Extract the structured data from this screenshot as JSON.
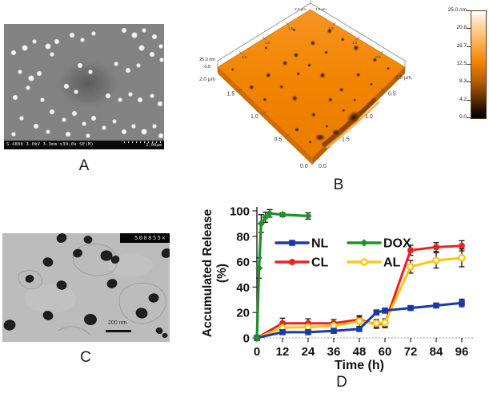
{
  "figure": {
    "panels": {
      "a": {
        "label": "A",
        "sem_info": "S-4800 3.0kV 3.3mm x30.0k SE(M)",
        "scale_text": "1.00µm"
      },
      "b": {
        "label": "B",
        "z_axis": {
          "max": "25.0 nm",
          "min": "0.0"
        },
        "front_left_axis": {
          "end": "2.0 µm",
          "ticks": [
            "1.5",
            "1.0",
            "0.5"
          ],
          "origin": "0.0"
        },
        "front_right_axis": {
          "end": "2.0 µm",
          "ticks": [
            "1.5",
            "1.0",
            "0.5"
          ],
          "origin": "0.0"
        },
        "back_left_ticks": [
          "1.5",
          "1.0",
          "0.5"
        ],
        "back_right_ticks": [
          "1.5",
          "1.0",
          "0.5"
        ],
        "apex_labels": [
          "2.0 µm",
          "2.0 µm"
        ]
      },
      "c": {
        "label": "C",
        "stamp": "500855×",
        "scale_text": "200 nm"
      },
      "d": {
        "label": "D"
      }
    },
    "colorbar": {
      "unit": "nm",
      "labels": [
        "25.0 nm",
        "20.8",
        "16.7",
        "12.5",
        "8.3",
        "4.2",
        "0.0"
      ]
    }
  },
  "chart_data": {
    "type": "line",
    "title": "",
    "xlabel": "Time (h)",
    "ylabel": "Accumulated Release (%)",
    "ylabel_lines": [
      "Accumulated Release",
      "(%)"
    ],
    "xlim": [
      0,
      96
    ],
    "ylim": [
      0,
      100
    ],
    "x_ticks": [
      0,
      12,
      24,
      36,
      48,
      60,
      72,
      84,
      96
    ],
    "y_ticks": [
      0,
      20,
      40,
      60,
      80,
      100
    ],
    "grid": false,
    "legend_position": "inside top, two columns",
    "legend_rows": [
      [
        "NL",
        "DOX"
      ],
      [
        "CL",
        "AL"
      ]
    ],
    "series": [
      {
        "name": "NL",
        "color": "#1a39a8",
        "marker": "square",
        "x": [
          0,
          12,
          24,
          36,
          48,
          56,
          60,
          72,
          84,
          96
        ],
        "y": [
          0,
          4.5,
          4.5,
          5.5,
          7,
          20,
          21.5,
          23.5,
          25.5,
          27.5
        ],
        "err": [
          0,
          1.5,
          1.5,
          1.5,
          1.5,
          2,
          2,
          1.5,
          1.5,
          3
        ]
      },
      {
        "name": "CL",
        "color": "#ee2022",
        "marker": "circle",
        "x": [
          0,
          12,
          24,
          36,
          48,
          56,
          60,
          72,
          84,
          96
        ],
        "y": [
          0,
          11.5,
          11.5,
          11.5,
          14.5,
          10.5,
          11.5,
          69,
          71.5,
          72.5
        ],
        "err": [
          0,
          4,
          3.5,
          3,
          3,
          3,
          3.5,
          4,
          3.5,
          4
        ]
      },
      {
        "name": "DOX",
        "color": "#1d9027",
        "marker": "diamond",
        "x": [
          0,
          1,
          2,
          4,
          6,
          12,
          24
        ],
        "y": [
          0,
          55,
          90,
          95,
          98,
          97,
          96
        ],
        "err": [
          0,
          8,
          7,
          4,
          3,
          1.5,
          2.5
        ]
      },
      {
        "name": "AL",
        "color": "#fdc515",
        "marker": "open-circle",
        "x": [
          0,
          12,
          24,
          36,
          48,
          56,
          60,
          72,
          84,
          96
        ],
        "y": [
          0,
          8,
          8.5,
          9.5,
          13,
          11.5,
          12,
          56,
          61,
          63
        ],
        "err": [
          0,
          2.5,
          2.5,
          2.5,
          4,
          3,
          3,
          5,
          6,
          7
        ]
      }
    ]
  }
}
